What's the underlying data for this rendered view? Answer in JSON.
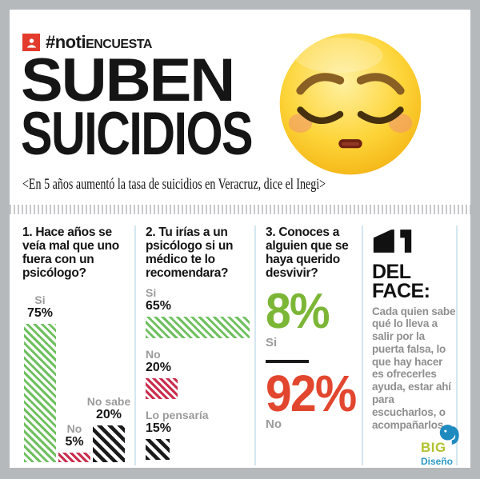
{
  "page": {
    "frame_color": "#b6b9bc",
    "background": "#ffffff"
  },
  "header": {
    "badge_color": "#e23a2c",
    "hashtag_bold": "#noti",
    "hashtag_caps": "ENCUESTA"
  },
  "title": {
    "line1": "SUBEN",
    "line2": "SUICIDIOS"
  },
  "subtitle": "<En 5 años aumentó la tasa de suicidios en Veracruz, dice el Inegi>",
  "emoji": {
    "name": "pensive-face-emoji"
  },
  "colors": {
    "bar_green": "#6ec05f",
    "bar_crimson": "#cb2e4e",
    "bar_black": "#1b1b1b",
    "stat_green": "#7cb637",
    "stat_red": "#e2462e",
    "label_gray": "#9b9b9b",
    "divider_blue": "#d5e6ef"
  },
  "survey": {
    "q1": {
      "question": "1. Hace años se veía mal que uno fuera con un psicólogo?",
      "bars": [
        {
          "label": "Si",
          "value": "75%",
          "pct": 75,
          "style": "green"
        },
        {
          "label": "No",
          "value": "5%",
          "pct": 5,
          "style": "red"
        },
        {
          "label": "No sabe",
          "value": "20%",
          "pct": 20,
          "style": "black"
        }
      ]
    },
    "q2": {
      "question": "2. Tu irías a un psicólogo si un médico te lo recomendara?",
      "bars": [
        {
          "label": "Si",
          "value": "65%",
          "pct": 65,
          "style": "green"
        },
        {
          "label": "No",
          "value": "20%",
          "pct": 20,
          "style": "red"
        },
        {
          "label": "Lo pensaría",
          "value": "15%",
          "pct": 15,
          "style": "black"
        }
      ]
    },
    "q3": {
      "question": "3. Conoces a alguien que se haya querido desvivir?",
      "stats": [
        {
          "value": "8%",
          "label": "Si",
          "color": "#7cb637"
        },
        {
          "value": "92%",
          "label": "No",
          "color": "#e2462e"
        }
      ]
    }
  },
  "quote_panel": {
    "title_line1": "DEL",
    "title_line2": "FACE:",
    "body": "Cada quien sabe qué lo lleva a salir por la puerta falsa, lo que hay hacer es ofrecerles ayuda, estar ahí para escucharlos, o acompañarlos"
  },
  "logo": {
    "name": "BIG",
    "sub": "Diseño",
    "icon": "elephant-icon"
  },
  "chart_data": [
    {
      "type": "bar",
      "orientation": "vertical",
      "title": "1. Hace años se veía mal que uno fuera con un psicólogo?",
      "categories": [
        "Si",
        "No",
        "No sabe"
      ],
      "values": [
        75,
        5,
        20
      ],
      "unit": "%",
      "bar_styles": [
        "green-hatch",
        "red-hatch",
        "black-hatch"
      ],
      "ylim": [
        0,
        75
      ],
      "grid": false,
      "legend": false
    },
    {
      "type": "bar",
      "orientation": "horizontal",
      "title": "2. Tu irías a un psicólogo si un médico te lo recomendara?",
      "categories": [
        "Si",
        "No",
        "Lo pensaría"
      ],
      "values": [
        65,
        20,
        15
      ],
      "unit": "%",
      "bar_styles": [
        "green-hatch",
        "red-hatch",
        "black-hatch"
      ],
      "grid": false,
      "legend": false
    },
    {
      "type": "bar",
      "orientation": "text-stat",
      "title": "3. Conoces a alguien que se haya querido desvivir?",
      "categories": [
        "Si",
        "No"
      ],
      "values": [
        8,
        92
      ],
      "unit": "%",
      "value_colors": [
        "#7cb637",
        "#e2462e"
      ],
      "grid": false,
      "legend": false
    }
  ]
}
